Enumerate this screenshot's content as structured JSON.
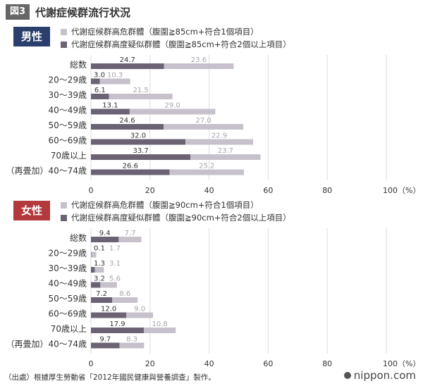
{
  "figure": {
    "badge": "図3",
    "title": "代謝症候群流行状況"
  },
  "colors": {
    "badge_bg": "#666666",
    "male_badge": "#2b3f6d",
    "female_badge": "#b2393c",
    "dark_bar": "#6b6373",
    "light_bar": "#c6c1cb",
    "grid": "#dddddd"
  },
  "chart_data": [
    {
      "type": "bar",
      "orientation": "horizontal",
      "stacked": true,
      "title": "男性",
      "categories": [
        "総数",
        "20～29歳",
        "30～39歳",
        "40～49歳",
        "50～59歳",
        "60～69歳",
        "70歳以上",
        "（再畳加）40～74歳"
      ],
      "series": [
        {
          "name": "代謝症候群高度疑似群體（腹圍≧85cm+符合2個以上項目）",
          "values": [
            24.7,
            3.0,
            6.1,
            13.1,
            24.6,
            32.0,
            33.7,
            26.6
          ]
        },
        {
          "name": "代謝症候群高危群體（腹圍≧85cm+符合1個項目）",
          "values": [
            23.6,
            10.3,
            21.5,
            29.0,
            27.0,
            22.9,
            23.7,
            25.2
          ]
        }
      ],
      "xlim": [
        0,
        100
      ],
      "xticks": [
        "0",
        "20",
        "40",
        "60",
        "80",
        "100（%）"
      ],
      "grid": true
    },
    {
      "type": "bar",
      "orientation": "horizontal",
      "stacked": true,
      "title": "女性",
      "categories": [
        "総数",
        "20～29歳",
        "30～39歳",
        "40～49歳",
        "50～59歳",
        "60～69歳",
        "70歳以上",
        "（再畳加）40～74歳"
      ],
      "series": [
        {
          "name": "代謝症候群高度疑似群體（腹圍≧90cm+符合2個以上項目）",
          "values": [
            9.4,
            0.1,
            1.3,
            3.2,
            7.2,
            12.0,
            17.9,
            9.7
          ]
        },
        {
          "name": "代謝症候群高危群體（腹圍≧90cm+符合1個項目）",
          "values": [
            7.7,
            1.7,
            3.1,
            5.6,
            8.6,
            9.0,
            10.8,
            8.3
          ]
        }
      ],
      "xlim": [
        0,
        100
      ],
      "xticks": [
        "0",
        "20",
        "40",
        "60",
        "80",
        "100（%）"
      ],
      "grid": true
    }
  ],
  "source_note": "（出處）根據厚生勞動省「2012年國民健康與營養調查」製作。",
  "brand": "nippon.com"
}
